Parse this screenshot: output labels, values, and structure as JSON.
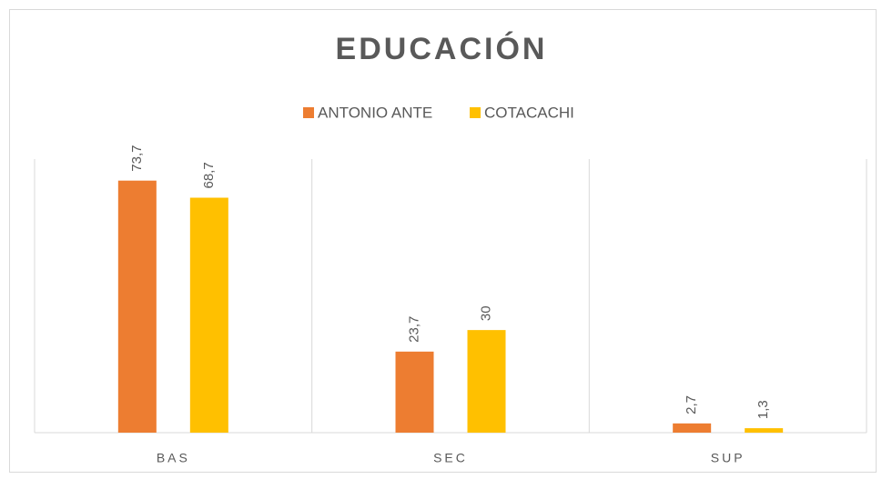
{
  "chart_data": {
    "type": "bar",
    "title": "EDUCACIÓN",
    "categories": [
      "BAS",
      "SEC",
      "SUP"
    ],
    "series": [
      {
        "name": "ANTONIO ANTE",
        "color": "#ed7d31",
        "values": [
          73.7,
          23.7,
          2.7
        ],
        "value_labels": [
          "73,7",
          "23,7",
          "2,7"
        ]
      },
      {
        "name": "COTACACHI",
        "color": "#ffc000",
        "values": [
          68.7,
          30,
          1.3
        ],
        "value_labels": [
          "68,7",
          "30",
          "1,3"
        ]
      }
    ],
    "ylim": [
      0,
      80
    ],
    "legend": "top"
  }
}
